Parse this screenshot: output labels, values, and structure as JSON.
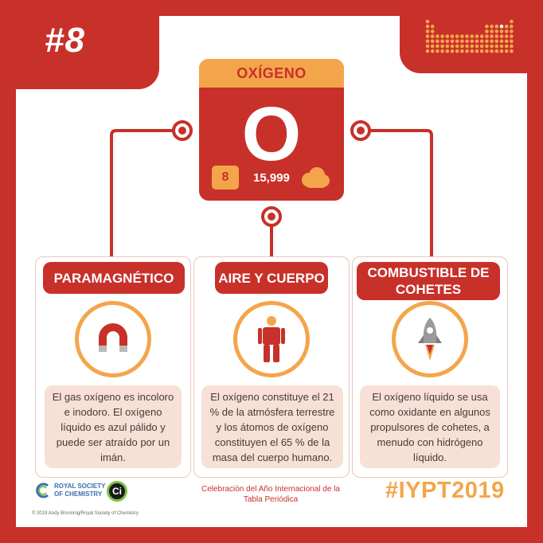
{
  "header": {
    "number": "#8"
  },
  "element": {
    "name": "OXÍGENO",
    "symbol": "O",
    "atomic_number": "8",
    "atomic_mass": "15,999"
  },
  "columns": [
    {
      "title": "PARAMAGNÉTICO",
      "icon": "magnet-icon",
      "description": "El gas oxígeno es incoloro e inodoro. El oxígeno líquido es azul pálido y puede ser atraído por un imán."
    },
    {
      "title": "AIRE Y CUERPO",
      "icon": "human-body-icon",
      "description": "El oxígeno constituye el 21 % de la atmósfera terrestre y los átomos de oxígeno constituyen el 65 % de la masa del cuerpo humano."
    },
    {
      "title": "COMBUSTIBLE DE COHETES",
      "icon": "rocket-icon",
      "description": "El oxígeno líquido se usa como oxidante en algunos propulsores de cohetes, a menudo con hidrógeno líquido."
    }
  ],
  "footer": {
    "rsc_logo_text": "ROYAL SOCIETY OF CHEMISTRY",
    "ci_logo_text": "Ci",
    "copyright": "© 2019 Andy Brunning/Royal Society of Chemistry",
    "celebration": "Celebración del Año Internacional de la Tabla Periódica",
    "hashtag": "#IYPT2019"
  },
  "colors": {
    "red": "#c8302a",
    "orange": "#f4a54b",
    "light_peach": "#f7e0d5",
    "white": "#ffffff"
  }
}
